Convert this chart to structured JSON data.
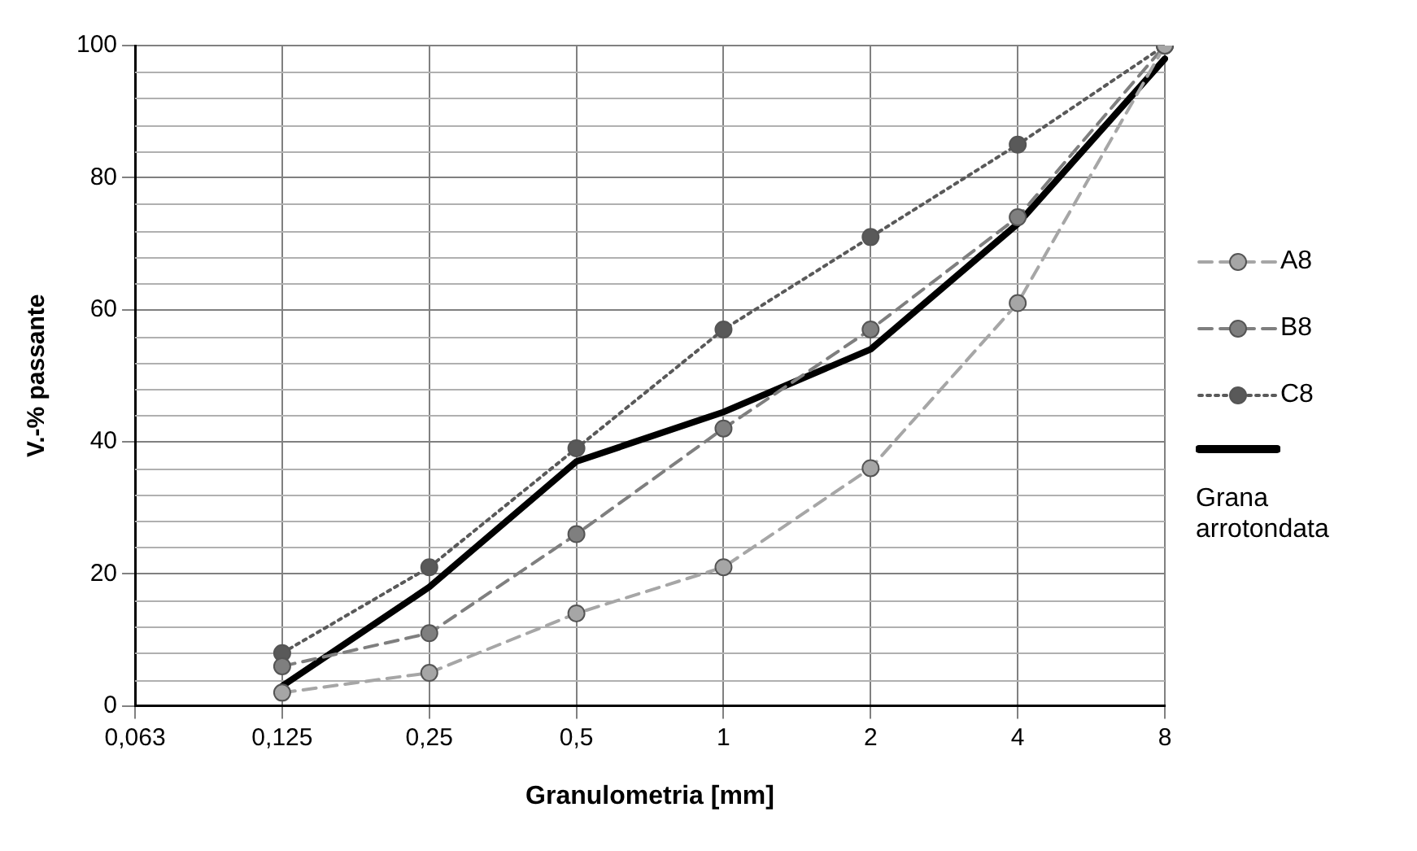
{
  "chart_data": {
    "type": "line",
    "xlabel": "Granulometria [mm]",
    "ylabel": "V.-% passante",
    "categories": [
      "0,063",
      "0,125",
      "0,25",
      "0,5",
      "1",
      "2",
      "4",
      "8"
    ],
    "series": [
      {
        "name": "A8",
        "color": "#a6a6a6",
        "values": [
          null,
          2,
          5,
          14,
          21,
          36,
          61,
          100
        ],
        "marker": "circle",
        "line_style": "dashed"
      },
      {
        "name": "B8",
        "color": "#7f7f7f",
        "values": [
          null,
          6,
          11,
          26,
          42,
          57,
          74,
          100
        ],
        "marker": "circle",
        "line_style": "dashed"
      },
      {
        "name": "C8",
        "color": "#595959",
        "values": [
          null,
          8,
          21,
          39,
          57,
          71,
          85,
          100
        ],
        "marker": "circle",
        "line_style": "dotted"
      },
      {
        "name": "Grana arrotondata",
        "color": "#000000",
        "values": [
          null,
          3,
          18,
          37,
          44.5,
          54,
          73,
          98
        ],
        "marker": "none",
        "line_style": "solid"
      }
    ],
    "ylim": [
      0,
      100
    ],
    "yticks": [
      0,
      20,
      40,
      60,
      80,
      100
    ],
    "grid": true,
    "legend": "right"
  }
}
